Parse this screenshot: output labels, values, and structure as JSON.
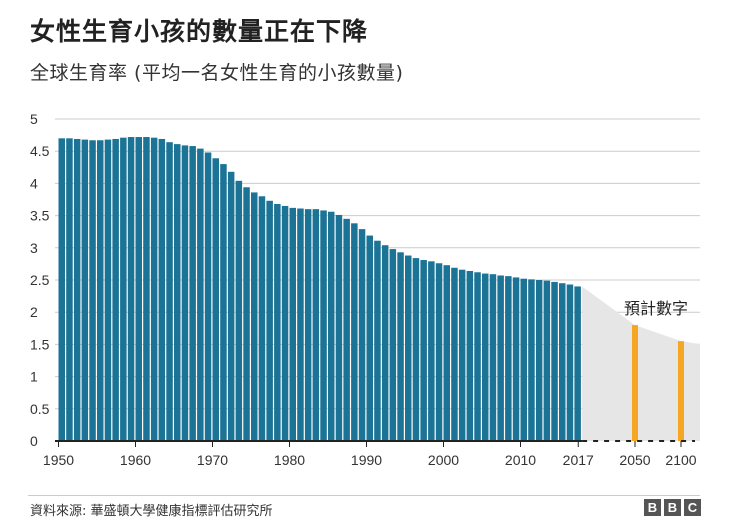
{
  "title": "女性生育小孩的數量正在下降",
  "subtitle": "全球生育率 (平均一名女性生育的小孩數量)",
  "source": "資料來源: 華盛頓大學健康指標評估研究所",
  "logo": [
    "B",
    "B",
    "C"
  ],
  "colors": {
    "bar": "#1b7396",
    "projection": "#f5a623",
    "projection_area": "#e6e6e6",
    "grid": "#cccccc",
    "axis": "#222222"
  },
  "chart_data": {
    "type": "bar",
    "title": "女性生育小孩的數量正在下降",
    "subtitle": "全球生育率 (平均一名女性生育的小孩數量)",
    "xlabel": "",
    "ylabel": "",
    "ylim": [
      0,
      5
    ],
    "yticks": [
      "0",
      "0.5",
      "1",
      "1.5",
      "2",
      "2.5",
      "3",
      "3.5",
      "4",
      "4.5",
      "5"
    ],
    "xticks": [
      "1950",
      "1960",
      "1970",
      "1980",
      "1990",
      "2000",
      "2010",
      "2017",
      "2050",
      "2100"
    ],
    "grid": true,
    "annotation": "預計數字",
    "series": [
      {
        "x": [
          1950,
          1951,
          1952,
          1953,
          1954,
          1955,
          1956,
          1957,
          1958,
          1959,
          1960,
          1961,
          1962,
          1963,
          1964,
          1965,
          1966,
          1967,
          1968,
          1969,
          1970,
          1971,
          1972,
          1973,
          1974,
          1975,
          1976,
          1977,
          1978,
          1979,
          1980,
          1981,
          1982,
          1983,
          1984,
          1985,
          1986,
          1987,
          1988,
          1989,
          1990,
          1991,
          1992,
          1993,
          1994,
          1995,
          1996,
          1997,
          1998,
          1999,
          2000,
          2001,
          2002,
          2003,
          2004,
          2005,
          2006,
          2007,
          2008,
          2009,
          2010,
          2011,
          2012,
          2013,
          2014,
          2015,
          2016,
          2017
        ],
        "values": [
          4.7,
          4.7,
          4.69,
          4.68,
          4.67,
          4.67,
          4.68,
          4.69,
          4.71,
          4.72,
          4.72,
          4.72,
          4.71,
          4.69,
          4.64,
          4.61,
          4.59,
          4.58,
          4.54,
          4.48,
          4.39,
          4.3,
          4.18,
          4.04,
          3.94,
          3.86,
          3.8,
          3.73,
          3.68,
          3.65,
          3.62,
          3.61,
          3.6,
          3.6,
          3.58,
          3.56,
          3.51,
          3.45,
          3.38,
          3.29,
          3.19,
          3.11,
          3.04,
          2.98,
          2.93,
          2.88,
          2.84,
          2.81,
          2.79,
          2.76,
          2.73,
          2.69,
          2.66,
          2.64,
          2.62,
          2.6,
          2.59,
          2.57,
          2.56,
          2.54,
          2.52,
          2.51,
          2.5,
          2.49,
          2.47,
          2.45,
          2.43,
          2.4
        ]
      },
      {
        "x": [
          2050,
          2100
        ],
        "values": [
          1.8,
          1.55
        ]
      }
    ]
  }
}
